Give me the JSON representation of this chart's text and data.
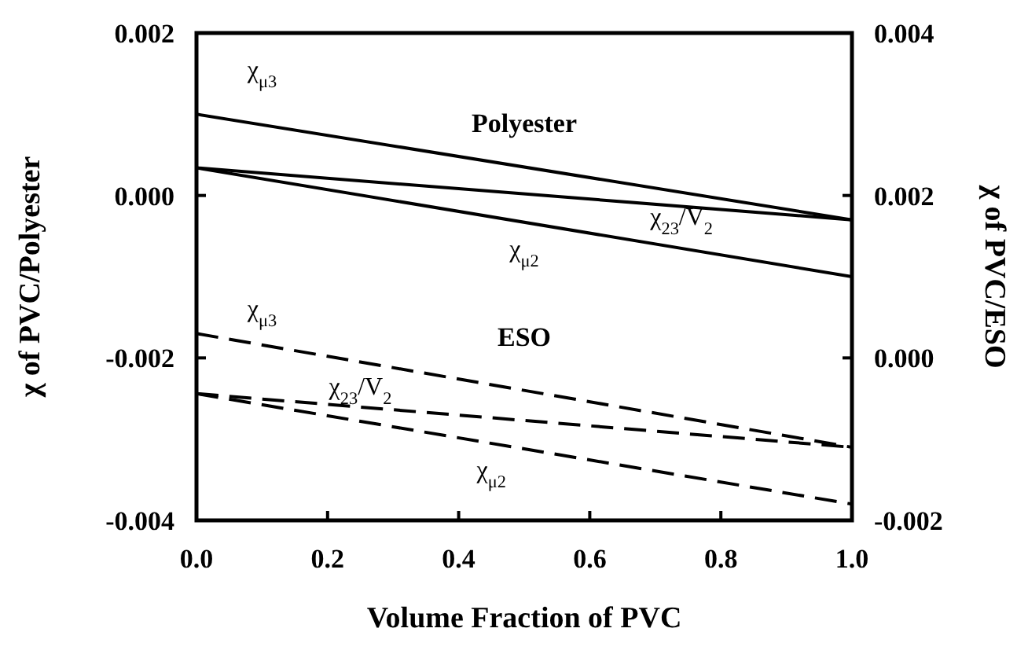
{
  "chart_data": {
    "type": "line",
    "xlabel": "Volume Fraction of PVC",
    "ylabel": "χ of PVC/Polyester",
    "y2label": "χ of PVC/ESO",
    "xlim": [
      0,
      1
    ],
    "xticks": [
      {
        "value": 0,
        "label": "0.0"
      },
      {
        "value": 0.2,
        "label": "0.2"
      },
      {
        "value": 0.4,
        "label": "0.4"
      },
      {
        "value": 0.6,
        "label": "0.6"
      },
      {
        "value": 0.8,
        "label": "0.8"
      },
      {
        "value": 1,
        "label": "1.0"
      }
    ],
    "ylim": [
      -0.004,
      0.002
    ],
    "yticks": [
      {
        "value": -0.004,
        "label": "-0.004"
      },
      {
        "value": -0.002,
        "label": "-0.002"
      },
      {
        "value": 0,
        "label": "0.000"
      },
      {
        "value": 0.002,
        "label": "0.002"
      }
    ],
    "y2lim": [
      -0.002,
      0.004
    ],
    "y2ticks": [
      {
        "value": -0.002,
        "label": "-0.002"
      },
      {
        "value": 0,
        "label": "0.000"
      },
      {
        "value": 0.002,
        "label": "0.002"
      },
      {
        "value": 0.004,
        "label": "0.004"
      }
    ],
    "x": [
      0,
      1
    ],
    "grid": false,
    "marker": "none",
    "series": [
      {
        "name": "χ$_{μ3}$",
        "color": "#000000",
        "values": [
          0.001,
          -0.0003
        ],
        "line_style": "solid"
      },
      {
        "name": "χ$_{μ2}$",
        "color": "#000000",
        "values": [
          0.00034,
          -0.001
        ],
        "line_style": "solid"
      },
      {
        "name": "χ$_{23}$/V$_{2}$",
        "color": "#000000",
        "values": [
          0.00034,
          -0.0003
        ],
        "line_style": "solid"
      },
      {
        "name": "χ$_{μ3}$",
        "color": "#000000",
        "values": [
          0.0003,
          -0.0011
        ],
        "line_style": "dashed",
        "axis": "y2"
      },
      {
        "name": "χ$_{23}$/V$_{2}$",
        "color": "#000000",
        "values": [
          -0.00044,
          -0.0011
        ],
        "line_style": "dashed",
        "axis": "y2"
      },
      {
        "name": "χ$_{μ2}$",
        "color": "#000000",
        "values": [
          -0.00044,
          -0.0018
        ],
        "line_style": "dashed",
        "axis": "y2"
      }
    ],
    "annotations": [
      "Polyester",
      "ESO"
    ]
  }
}
